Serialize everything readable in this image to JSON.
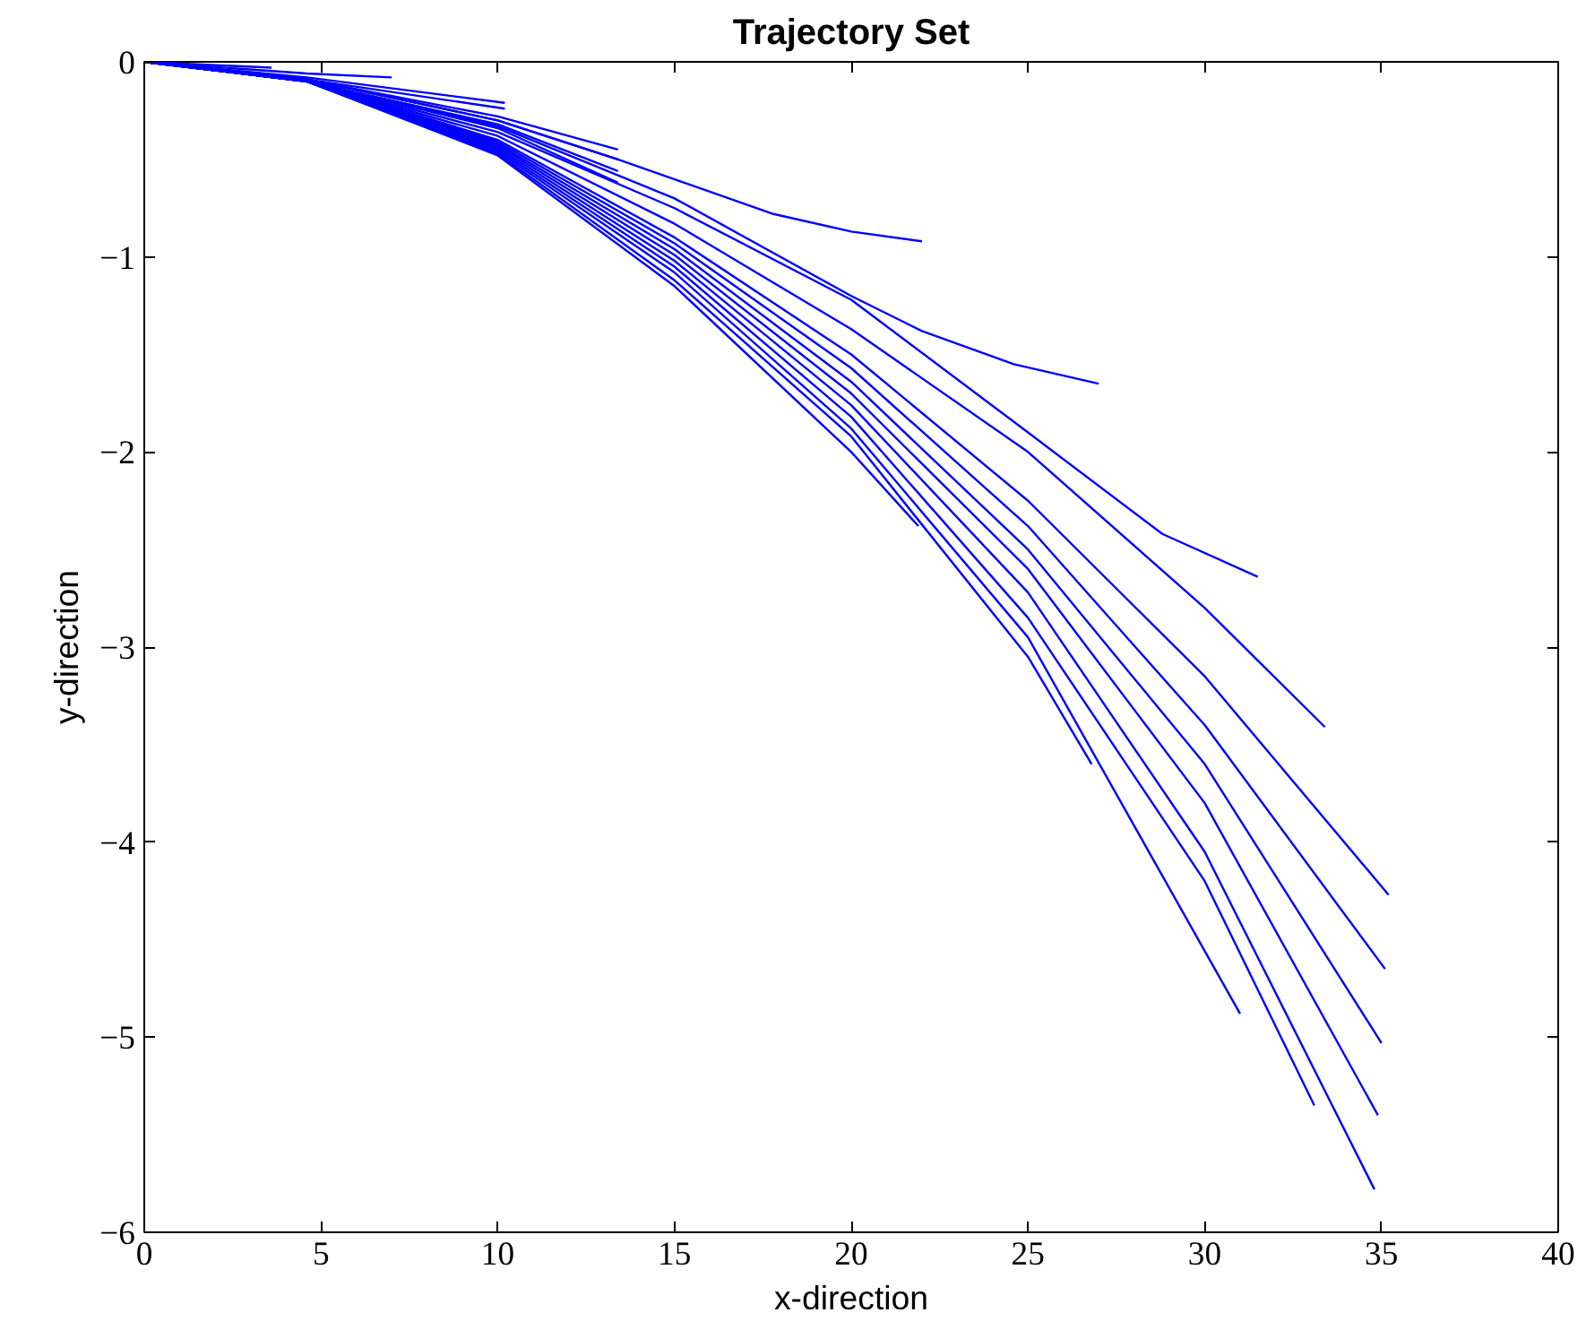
{
  "chart_data": {
    "type": "line",
    "title": "Trajectory Set",
    "xlabel": "x-direction",
    "ylabel": "y-direction",
    "xlim": [
      0,
      40
    ],
    "ylim": [
      -6,
      0
    ],
    "xticks": [
      0,
      5,
      10,
      15,
      20,
      25,
      30,
      35,
      40
    ],
    "yticks": [
      -6,
      -5,
      -4,
      -3,
      -2,
      -1,
      0
    ],
    "grid": false,
    "series": [
      {
        "color": "#0000ff",
        "x": [
          0,
          3.6
        ],
        "values": [
          0,
          -0.03
        ]
      },
      {
        "color": "#0000ff",
        "x": [
          0,
          4.6,
          7.0
        ],
        "values": [
          0,
          -0.06,
          -0.08
        ]
      },
      {
        "color": "#0000ff",
        "x": [
          0,
          4.6,
          10.2
        ],
        "values": [
          0,
          -0.08,
          -0.21
        ]
      },
      {
        "color": "#0000ff",
        "x": [
          0,
          4.6,
          10.2
        ],
        "values": [
          0,
          -0.09,
          -0.24
        ]
      },
      {
        "color": "#0000ff",
        "x": [
          0,
          4.6,
          10,
          13.4
        ],
        "values": [
          0,
          -0.09,
          -0.28,
          -0.45
        ]
      },
      {
        "color": "#0000ff",
        "x": [
          0,
          4.6,
          10,
          13.4
        ],
        "values": [
          0,
          -0.09,
          -0.3,
          -0.5
        ]
      },
      {
        "color": "#0000ff",
        "x": [
          0,
          4.6,
          10,
          13.4
        ],
        "values": [
          0,
          -0.1,
          -0.32,
          -0.56
        ]
      },
      {
        "color": "#0000ff",
        "x": [
          0,
          4.6,
          10,
          13.4
        ],
        "values": [
          0,
          -0.1,
          -0.34,
          -0.62
        ]
      },
      {
        "color": "#0000ff",
        "x": [
          0,
          4.6,
          10,
          13.4,
          17.8,
          20,
          22
        ],
        "values": [
          0,
          -0.09,
          -0.3,
          -0.5,
          -0.78,
          -0.87,
          -0.92
        ]
      },
      {
        "color": "#0000ff",
        "x": [
          0,
          4.6,
          10,
          15,
          20,
          22,
          24.6,
          27
        ],
        "values": [
          0,
          -0.1,
          -0.33,
          -0.7,
          -1.2,
          -1.38,
          -1.55,
          -1.65
        ]
      },
      {
        "color": "#0000ff",
        "x": [
          0,
          4.6,
          10,
          15,
          20,
          25,
          28.8,
          31.5
        ],
        "values": [
          0,
          -0.1,
          -0.36,
          -0.75,
          -1.22,
          -1.9,
          -2.42,
          -2.64
        ]
      },
      {
        "color": "#0000ff",
        "x": [
          0,
          4.6,
          10,
          15,
          20,
          25,
          30,
          33.4
        ],
        "values": [
          0,
          -0.1,
          -0.38,
          -0.83,
          -1.37,
          -2.0,
          -2.8,
          -3.41
        ]
      },
      {
        "color": "#0000ff",
        "x": [
          0,
          4.6,
          10,
          15,
          20,
          25,
          30,
          35.2
        ],
        "values": [
          0,
          -0.1,
          -0.4,
          -0.9,
          -1.5,
          -2.25,
          -3.15,
          -4.27
        ]
      },
      {
        "color": "#0000ff",
        "x": [
          0,
          4.6,
          10,
          15,
          20,
          25,
          30,
          35.1
        ],
        "values": [
          0,
          -0.1,
          -0.41,
          -0.93,
          -1.57,
          -2.38,
          -3.4,
          -4.65
        ]
      },
      {
        "color": "#0000ff",
        "x": [
          0,
          4.6,
          10,
          15,
          20,
          25,
          30,
          35
        ],
        "values": [
          0,
          -0.1,
          -0.42,
          -0.96,
          -1.64,
          -2.5,
          -3.6,
          -5.03
        ]
      },
      {
        "color": "#0000ff",
        "x": [
          0,
          4.6,
          10,
          15,
          20,
          25,
          30,
          34.9
        ],
        "values": [
          0,
          -0.1,
          -0.43,
          -0.99,
          -1.7,
          -2.6,
          -3.8,
          -5.4
        ]
      },
      {
        "color": "#0000ff",
        "x": [
          0,
          4.6,
          10,
          15,
          20,
          25,
          30,
          34.8
        ],
        "values": [
          0,
          -0.1,
          -0.44,
          -1.02,
          -1.76,
          -2.72,
          -4.05,
          -5.78
        ]
      },
      {
        "color": "#0000ff",
        "x": [
          0,
          4.6,
          10,
          15,
          20,
          25,
          30,
          33.1
        ],
        "values": [
          0,
          -0.1,
          -0.45,
          -1.05,
          -1.82,
          -2.85,
          -4.2,
          -5.35
        ]
      },
      {
        "color": "#0000ff",
        "x": [
          0,
          4.6,
          10,
          15,
          20,
          25,
          31
        ],
        "values": [
          0,
          -0.1,
          -0.46,
          -1.08,
          -1.88,
          -2.95,
          -4.88
        ]
      },
      {
        "color": "#0000ff",
        "x": [
          0,
          4.6,
          10,
          15,
          20,
          25,
          26.8
        ],
        "values": [
          0,
          -0.1,
          -0.47,
          -1.12,
          -1.92,
          -3.05,
          -3.6
        ]
      },
      {
        "color": "#0000ff",
        "x": [
          0,
          4.6,
          10,
          15,
          20,
          21.9
        ],
        "values": [
          0,
          -0.1,
          -0.48,
          -1.15,
          -2.0,
          -2.38
        ]
      }
    ]
  }
}
